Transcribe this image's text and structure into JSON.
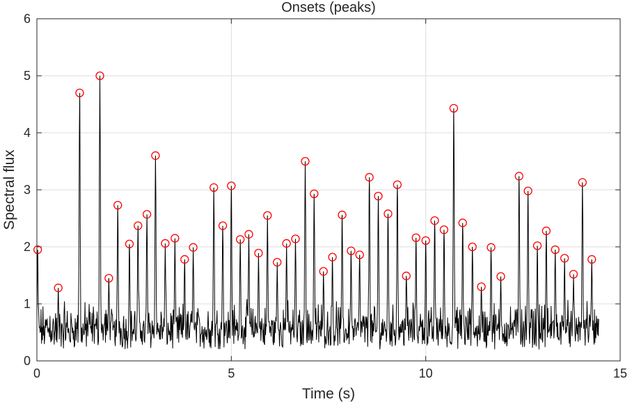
{
  "chart_data": {
    "type": "line",
    "title": "Onsets (peaks)",
    "xlabel": "Time (s)",
    "ylabel": "Spectral flux",
    "xlim": [
      0,
      15
    ],
    "ylim": [
      0,
      6
    ],
    "xticks": [
      0,
      5,
      10,
      15
    ],
    "yticks": [
      0,
      1,
      2,
      3,
      4,
      5,
      6
    ],
    "grid": true,
    "colors": {
      "line": "#000000",
      "marker": "#ff0000",
      "axes": "#262626",
      "grid": "#dcdcdc"
    },
    "series": [
      {
        "style": "line",
        "x_range": [
          0,
          14.45
        ],
        "baseline": 0.45
      },
      {
        "style": "markers",
        "marker": "circle",
        "x": [
          0.02,
          0.55,
          1.1,
          1.62,
          1.85,
          2.08,
          2.38,
          2.6,
          2.83,
          3.05,
          3.3,
          3.55,
          3.8,
          4.02,
          4.55,
          4.78,
          5.0,
          5.23,
          5.45,
          5.7,
          5.93,
          6.18,
          6.42,
          6.65,
          6.9,
          7.13,
          7.37,
          7.6,
          7.85,
          8.08,
          8.3,
          8.55,
          8.78,
          9.03,
          9.27,
          9.5,
          9.75,
          10.0,
          10.23,
          10.47,
          10.72,
          10.95,
          11.2,
          11.43,
          11.68,
          11.93,
          12.4,
          12.63,
          12.87,
          13.1,
          13.33,
          13.57,
          13.8,
          14.03,
          14.27
        ],
        "y": [
          1.95,
          1.28,
          4.7,
          5.0,
          1.45,
          2.73,
          2.05,
          2.37,
          2.57,
          3.6,
          2.06,
          2.15,
          1.78,
          1.99,
          3.04,
          2.37,
          3.07,
          2.13,
          2.22,
          1.89,
          2.55,
          1.73,
          2.06,
          2.14,
          3.5,
          2.93,
          1.57,
          1.82,
          2.56,
          1.93,
          1.86,
          3.22,
          2.89,
          2.58,
          3.09,
          1.49,
          2.16,
          2.11,
          2.46,
          2.3,
          4.43,
          2.42,
          2.0,
          1.3,
          1.99,
          1.48,
          3.24,
          2.98,
          2.02,
          2.28,
          1.95,
          1.8,
          1.52,
          3.13,
          1.78
        ]
      }
    ]
  }
}
